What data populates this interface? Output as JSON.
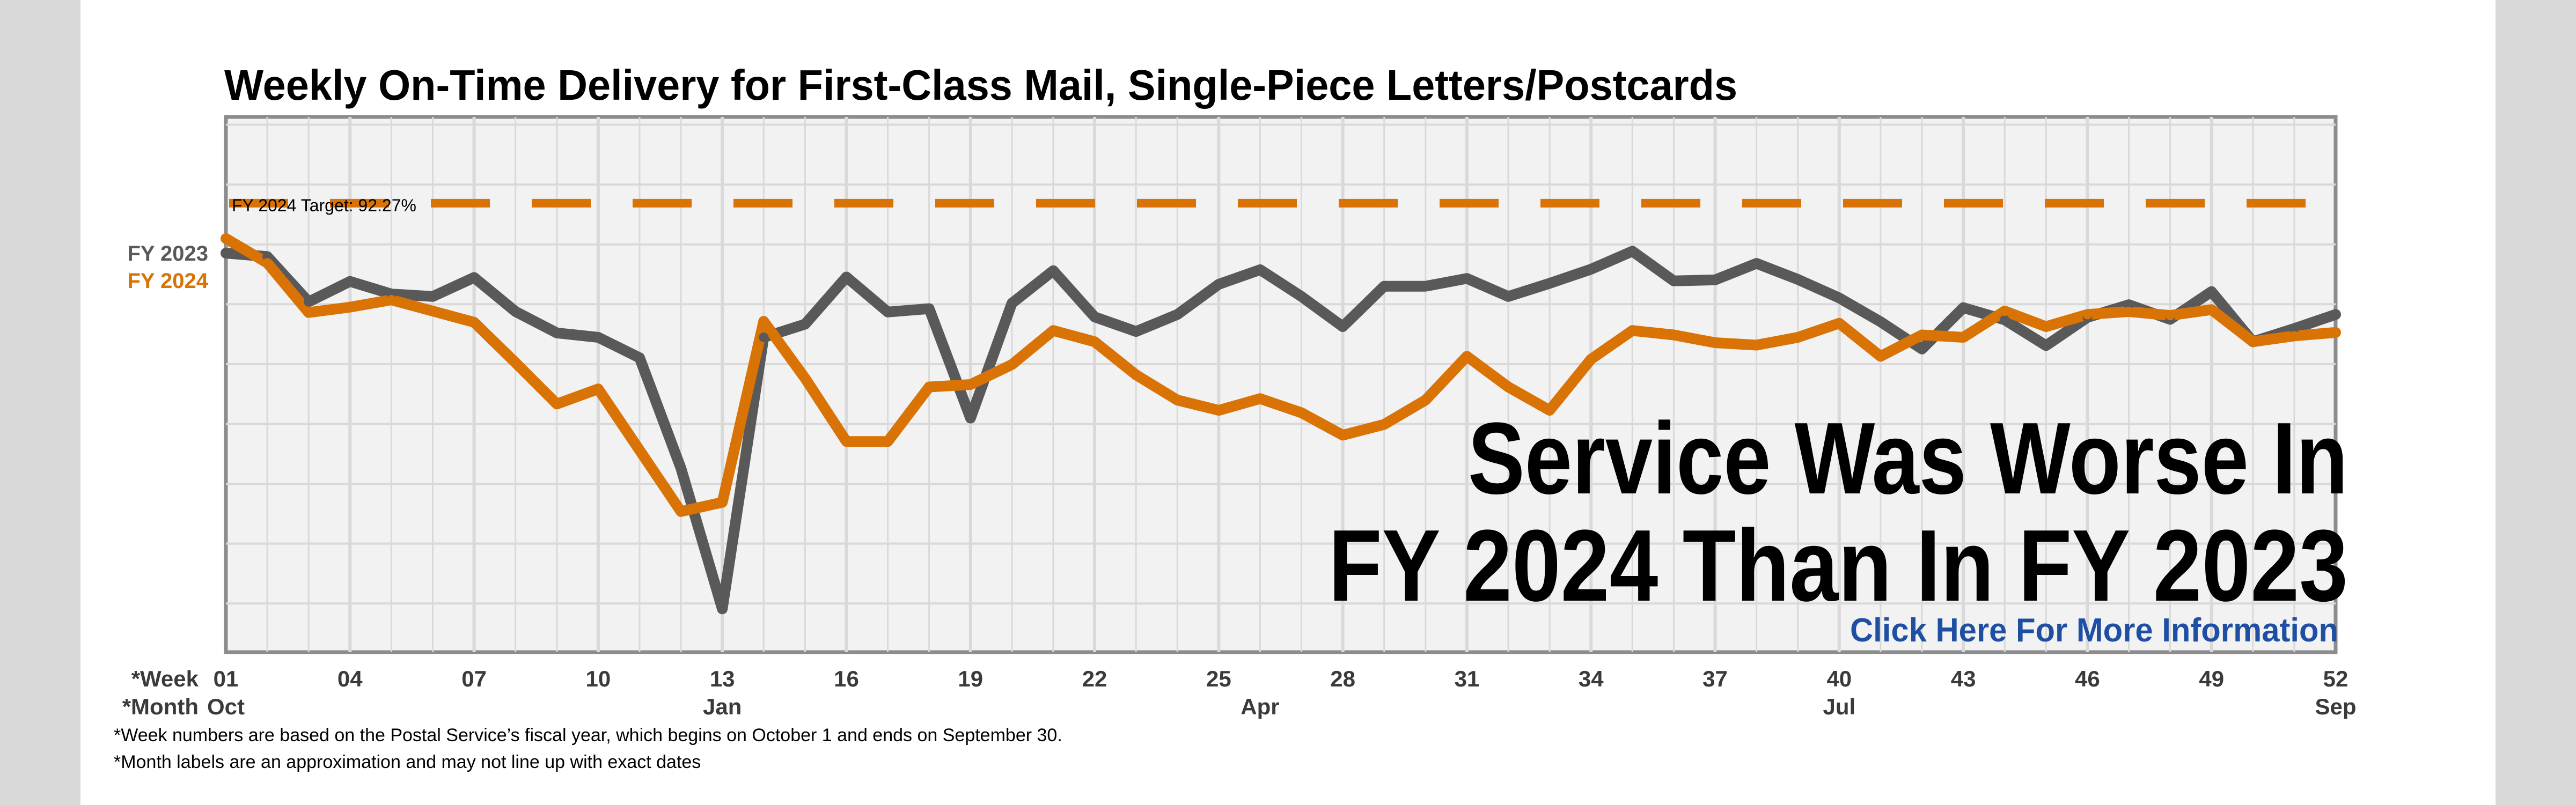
{
  "chart_data": {
    "type": "line",
    "title": "Weekly On-Time Delivery for First-Class Mail, Single-Piece Letters/Postcards",
    "target": {
      "label": "FY 2024 Target: 92.27%",
      "value": 92.27
    },
    "ylim": [
      0,
      100
    ],
    "grid": true,
    "series": [
      {
        "name": "FY 2023",
        "color": "#595959",
        "x": [
          1,
          2,
          3,
          4,
          5,
          6,
          7,
          8,
          9,
          10,
          11,
          12,
          13,
          14,
          15,
          16,
          17,
          18,
          19,
          20,
          21,
          22,
          23,
          24,
          25,
          26,
          27,
          28,
          29,
          30,
          31,
          32,
          33,
          34,
          35,
          36,
          37,
          38,
          39,
          40,
          41,
          42,
          43,
          44,
          45,
          46,
          47,
          48,
          49,
          50,
          51,
          52
        ],
        "values": [
          82.0,
          81.3,
          72.0,
          76.2,
          73.6,
          73.1,
          77.0,
          70.0,
          65.6,
          64.7,
          60.5,
          37.8,
          8.9,
          64.7,
          67.4,
          77.1,
          69.9,
          70.6,
          48.1,
          71.7,
          78.4,
          68.9,
          65.9,
          69.4,
          75.6,
          78.6,
          73.1,
          66.9,
          75.2,
          75.2,
          76.8,
          73.1,
          75.8,
          78.7,
          82.4,
          76.3,
          76.5,
          79.9,
          76.6,
          72.8,
          67.9,
          62.3,
          70.8,
          68.3,
          63.0,
          68.8,
          71.4,
          68.4,
          74.1,
          63.8,
          66.5,
          69.4
        ]
      },
      {
        "name": "FY 2024",
        "color": "#d97306",
        "x": [
          1,
          2,
          3,
          4,
          5,
          6,
          7,
          8,
          9,
          10,
          11,
          12,
          13,
          14,
          15,
          16,
          17,
          18,
          19,
          20,
          21,
          22,
          23,
          24,
          25,
          26,
          27,
          28,
          29,
          30,
          31,
          32,
          33,
          34,
          35,
          36,
          37,
          38,
          39,
          40,
          41,
          42,
          43,
          44,
          45,
          46,
          47,
          48,
          49,
          50,
          51,
          52
        ],
        "values": [
          85.0,
          80.0,
          69.8,
          70.9,
          72.4,
          70.1,
          67.8,
          59.5,
          51.0,
          54.1,
          41.5,
          28.9,
          30.8,
          68.0,
          56.3,
          43.3,
          43.3,
          54.5,
          55.0,
          59.1,
          66.1,
          63.8,
          57.0,
          51.8,
          49.7,
          52.1,
          49.2,
          44.6,
          46.8,
          51.8,
          60.8,
          54.5,
          49.7,
          60.2,
          66.1,
          65.2,
          63.6,
          63.1,
          64.7,
          67.6,
          60.8,
          65.2,
          64.7,
          70.1,
          66.9,
          69.4,
          70.0,
          69.2,
          70.4,
          63.8,
          65.0,
          65.7
        ]
      }
    ],
    "xaxis": {
      "week_label": "*Week",
      "month_label": "*Month",
      "week_ticks": [
        {
          "x": 1,
          "label": "01"
        },
        {
          "x": 4,
          "label": "04"
        },
        {
          "x": 7,
          "label": "07"
        },
        {
          "x": 10,
          "label": "10"
        },
        {
          "x": 13,
          "label": "13"
        },
        {
          "x": 16,
          "label": "16"
        },
        {
          "x": 19,
          "label": "19"
        },
        {
          "x": 22,
          "label": "22"
        },
        {
          "x": 25,
          "label": "25"
        },
        {
          "x": 28,
          "label": "28"
        },
        {
          "x": 31,
          "label": "31"
        },
        {
          "x": 34,
          "label": "34"
        },
        {
          "x": 37,
          "label": "37"
        },
        {
          "x": 40,
          "label": "40"
        },
        {
          "x": 43,
          "label": "43"
        },
        {
          "x": 46,
          "label": "46"
        },
        {
          "x": 49,
          "label": "49"
        },
        {
          "x": 52,
          "label": "52"
        }
      ],
      "month_ticks": [
        {
          "x": 1,
          "label": "Oct"
        },
        {
          "x": 13,
          "label": "Jan"
        },
        {
          "x": 26,
          "label": "Apr"
        },
        {
          "x": 40,
          "label": "Jul"
        },
        {
          "x": 52,
          "label": "Sep"
        }
      ]
    },
    "annotations": {
      "headline_line1": "Service Was Worse In",
      "headline_line2": "FY 2024 Than In FY 2023",
      "link_text": "Click Here For More Information"
    },
    "footnotes": [
      "*Week numbers are based on the Postal Service’s fiscal year, which begins on October 1 and ends on September 30.",
      "*Month labels are an approximation and may not line up with exact dates"
    ],
    "colors": {
      "link": "#1f4fa3",
      "grid": "#d9d9d9",
      "plot_bg": "#f2f2f2",
      "frame": "#8c8c8c"
    }
  }
}
